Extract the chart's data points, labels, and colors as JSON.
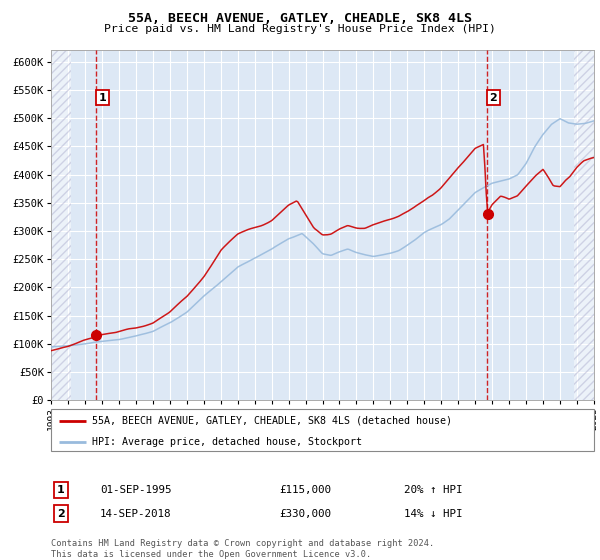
{
  "title1": "55A, BEECH AVENUE, GATLEY, CHEADLE, SK8 4LS",
  "title2": "Price paid vs. HM Land Registry's House Price Index (HPI)",
  "legend1": "55A, BEECH AVENUE, GATLEY, CHEADLE, SK8 4LS (detached house)",
  "legend2": "HPI: Average price, detached house, Stockport",
  "purchase1_date": "01-SEP-1995",
  "purchase1_price": "£115,000",
  "purchase1_hpi": "20% ↑ HPI",
  "purchase2_date": "14-SEP-2018",
  "purchase2_price": "£330,000",
  "purchase2_hpi": "14% ↓ HPI",
  "marker1_year": 1995.67,
  "marker1_val": 115000,
  "marker2_year": 2018.71,
  "marker2_val": 330000,
  "vline1_year": 1995.67,
  "vline2_year": 2018.71,
  "ylim": [
    0,
    620000
  ],
  "yticks": [
    0,
    50000,
    100000,
    150000,
    200000,
    250000,
    300000,
    350000,
    400000,
    450000,
    500000,
    550000,
    600000
  ],
  "bg_color": "#dde8f5",
  "grid_color": "#ffffff",
  "line_red": "#cc0000",
  "line_blue": "#99bbdd",
  "hatch_color": "#aaaacc",
  "footer": "Contains HM Land Registry data © Crown copyright and database right 2024.\nThis data is licensed under the Open Government Licence v3.0."
}
